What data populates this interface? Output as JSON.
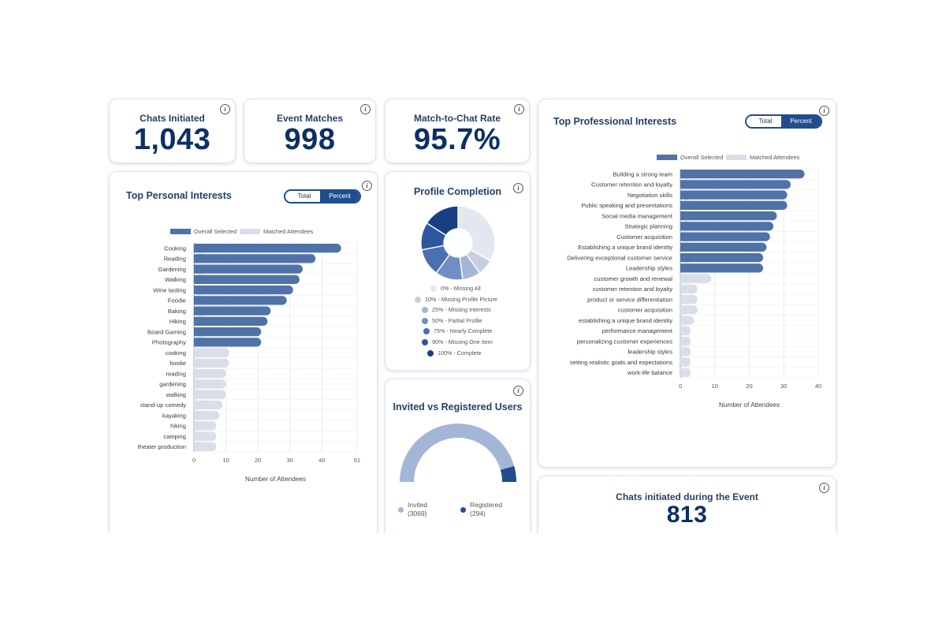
{
  "colors": {
    "overall": "#4f72a8",
    "matched": "#d9dee8",
    "accent": "#1f4d8f",
    "title": "#243f6b"
  },
  "kpis": {
    "chats": {
      "label": "Chats Initiated",
      "value": "1,043"
    },
    "matches": {
      "label": "Event Matches",
      "value": "998"
    },
    "rate": {
      "label": "Match-to-Chat Rate",
      "value": "95.7%"
    }
  },
  "toggle": {
    "total": "Total",
    "percent": "Percent"
  },
  "personal": {
    "title": "Top Personal Interests",
    "legend_overall": "Overall Selected",
    "legend_matched": "Matched Attendees",
    "xlabel": "Number of Attendees",
    "ticks": [
      "0",
      "10",
      "20",
      "30",
      "40",
      "51"
    ]
  },
  "professional": {
    "title": "Top Professional Interests",
    "legend_overall": "Overall Selected",
    "legend_matched": "Matched Attendees",
    "xlabel": "Number of Attendees",
    "ticks": [
      "0",
      "10",
      "20",
      "30",
      "40"
    ]
  },
  "profile": {
    "title": "Profile Completion",
    "legend": [
      {
        "label": "0% - Missing All",
        "color": "#e3e7ef"
      },
      {
        "label": "10% - Missing Profile Picture",
        "color": "#c5cfe0"
      },
      {
        "label": "25% - Missing Interests",
        "color": "#a3b6d6"
      },
      {
        "label": "50% - Partial Profile",
        "color": "#6f8fc4"
      },
      {
        "label": "75% - Nearly Complete",
        "color": "#4a6fb2"
      },
      {
        "label": "90% - Missing One Item",
        "color": "#2e559f"
      },
      {
        "label": "100% - Complete",
        "color": "#183f82"
      }
    ]
  },
  "users": {
    "title": "Invited vs Registered Users",
    "invited_label": "Invited",
    "invited_value": "(3069)",
    "registered_label": "Registered",
    "registered_value": "(294)"
  },
  "during": {
    "label": "Chats initiated during the Event",
    "value": "813"
  },
  "chart_data": [
    {
      "type": "bar",
      "orientation": "horizontal",
      "title": "Top Personal Interests",
      "xlabel": "Number of Attendees",
      "xlim": [
        0,
        51
      ],
      "series": [
        {
          "name": "Overall Selected",
          "categories": [
            "Cooking",
            "Reading",
            "Gardening",
            "Walking",
            "Wine tasting",
            "Foodie",
            "Baking",
            "Hiking",
            "Board Gaming",
            "Photography"
          ],
          "values": [
            46,
            38,
            34,
            33,
            31,
            29,
            24,
            23,
            21,
            21
          ]
        },
        {
          "name": "Matched Attendees",
          "categories": [
            "cooking",
            "foodie",
            "reading",
            "gardening",
            "walking",
            "stand-up comedy",
            "kayaking",
            "hiking",
            "camping",
            "theater production"
          ],
          "values": [
            11,
            11,
            10,
            10,
            10,
            9,
            8,
            7,
            7,
            7
          ]
        }
      ]
    },
    {
      "type": "bar",
      "orientation": "horizontal",
      "title": "Top Professional Interests",
      "xlabel": "Number of Attendees",
      "xlim": [
        0,
        40
      ],
      "series": [
        {
          "name": "Overall Selected",
          "categories": [
            "Building a strong team",
            "Customer retention and loyalty",
            "Negotiation skills",
            "Public speaking and presentations",
            "Social media management",
            "Strategic planning",
            "Customer acquisition",
            "Establishing a unique brand identity",
            "Delivering exceptional customer service",
            "Leadership styles"
          ],
          "values": [
            36,
            32,
            31,
            31,
            28,
            27,
            26,
            25,
            24,
            24
          ]
        },
        {
          "name": "Matched Attendees",
          "categories": [
            "customer growth and renewal",
            "customer retention and loyalty",
            "product or service differentiation",
            "customer acquisition",
            "establishing a unique brand identity",
            "performance management",
            "personalizing customer experiences",
            "leadership styles",
            "setting realistic goals and expectations",
            "work-life balance"
          ],
          "values": [
            9,
            5,
            5,
            5,
            4,
            3,
            3,
            3,
            3,
            3
          ]
        }
      ]
    },
    {
      "type": "pie",
      "title": "Profile Completion",
      "categories": [
        "0% - Missing All",
        "10% - Missing Profile Picture",
        "25% - Missing Interests",
        "50% - Partial Profile",
        "75% - Nearly Complete",
        "90% - Missing One Item",
        "100% - Complete"
      ],
      "values": [
        33,
        7,
        8,
        12,
        12,
        12,
        16
      ]
    },
    {
      "type": "pie",
      "title": "Invited vs Registered Users",
      "categories": [
        "Invited",
        "Registered"
      ],
      "values": [
        3069,
        294
      ]
    }
  ]
}
